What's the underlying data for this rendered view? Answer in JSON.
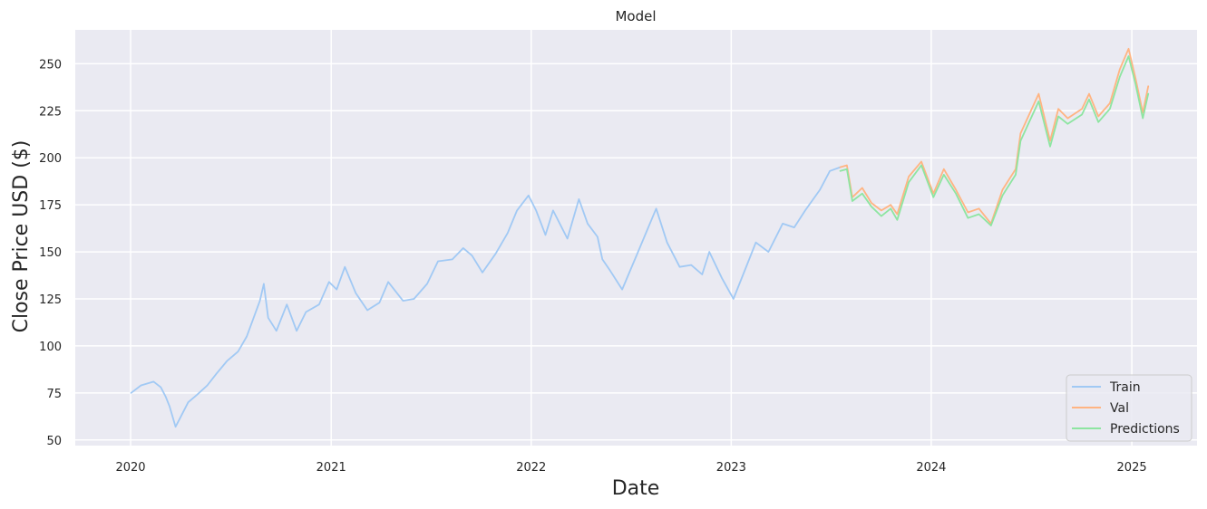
{
  "colors": {
    "plot_background": "#eaeaf2",
    "grid": "#ffffff",
    "train": "#a1c9f4",
    "val": "#ffb482",
    "predictions": "#8de5a1",
    "text": "#262626"
  },
  "chart_data": {
    "type": "line",
    "title": "Model",
    "xlabel": "Date",
    "ylabel": "Close Price USD ($)",
    "x_tick_labels": [
      "2020",
      "2021",
      "2022",
      "2023",
      "2024",
      "2025"
    ],
    "y_tick_labels": [
      "50",
      "75",
      "100",
      "125",
      "150",
      "175",
      "200",
      "225",
      "250"
    ],
    "y_ticks": [
      50,
      75,
      100,
      125,
      150,
      175,
      200,
      225,
      250
    ],
    "xlim": [
      "2019-09-22",
      "2025-04-30"
    ],
    "ylim": [
      47,
      268
    ],
    "grid": true,
    "legend_position": "bottom-right",
    "series": [
      {
        "name": "Train",
        "color": "#a1c9f4",
        "points": [
          [
            "2020-01-02",
            75
          ],
          [
            "2020-01-20",
            79
          ],
          [
            "2020-02-12",
            81
          ],
          [
            "2020-02-25",
            78
          ],
          [
            "2020-03-05",
            73
          ],
          [
            "2020-03-12",
            68
          ],
          [
            "2020-03-23",
            57
          ],
          [
            "2020-04-01",
            62
          ],
          [
            "2020-04-15",
            70
          ],
          [
            "2020-05-01",
            74
          ],
          [
            "2020-05-20",
            79
          ],
          [
            "2020-06-05",
            85
          ],
          [
            "2020-06-25",
            92
          ],
          [
            "2020-07-15",
            97
          ],
          [
            "2020-07-31",
            105
          ],
          [
            "2020-08-10",
            113
          ],
          [
            "2020-08-24",
            124
          ],
          [
            "2020-08-31",
            133
          ],
          [
            "2020-09-08",
            115
          ],
          [
            "2020-09-23",
            108
          ],
          [
            "2020-10-12",
            122
          ],
          [
            "2020-10-30",
            108
          ],
          [
            "2020-11-16",
            118
          ],
          [
            "2020-12-10",
            122
          ],
          [
            "2020-12-28",
            134
          ],
          [
            "2021-01-11",
            130
          ],
          [
            "2021-01-26",
            142
          ],
          [
            "2021-02-15",
            128
          ],
          [
            "2021-03-08",
            119
          ],
          [
            "2021-03-30",
            123
          ],
          [
            "2021-04-15",
            134
          ],
          [
            "2021-05-12",
            124
          ],
          [
            "2021-06-01",
            125
          ],
          [
            "2021-06-25",
            133
          ],
          [
            "2021-07-15",
            145
          ],
          [
            "2021-08-10",
            146
          ],
          [
            "2021-08-30",
            152
          ],
          [
            "2021-09-15",
            148
          ],
          [
            "2021-10-04",
            139
          ],
          [
            "2021-10-28",
            149
          ],
          [
            "2021-11-19",
            160
          ],
          [
            "2021-12-06",
            172
          ],
          [
            "2021-12-27",
            180
          ],
          [
            "2022-01-10",
            172
          ],
          [
            "2022-01-27",
            159
          ],
          [
            "2022-02-10",
            172
          ],
          [
            "2022-03-08",
            157
          ],
          [
            "2022-03-29",
            178
          ],
          [
            "2022-04-14",
            165
          ],
          [
            "2022-05-02",
            158
          ],
          [
            "2022-05-11",
            146
          ],
          [
            "2022-05-25",
            140
          ],
          [
            "2022-06-16",
            130
          ],
          [
            "2022-07-15",
            150
          ],
          [
            "2022-08-17",
            173
          ],
          [
            "2022-09-06",
            155
          ],
          [
            "2022-09-29",
            142
          ],
          [
            "2022-10-20",
            143
          ],
          [
            "2022-11-09",
            138
          ],
          [
            "2022-11-22",
            150
          ],
          [
            "2022-12-15",
            136
          ],
          [
            "2023-01-05",
            125
          ],
          [
            "2023-01-31",
            144
          ],
          [
            "2023-02-15",
            155
          ],
          [
            "2023-03-10",
            150
          ],
          [
            "2023-04-05",
            165
          ],
          [
            "2023-04-26",
            163
          ],
          [
            "2023-05-16",
            172
          ],
          [
            "2023-06-12",
            183
          ],
          [
            "2023-06-30",
            193
          ],
          [
            "2023-07-19",
            195
          ]
        ]
      },
      {
        "name": "Val",
        "color": "#ffb482",
        "points": [
          [
            "2023-07-19",
            195
          ],
          [
            "2023-07-31",
            196
          ],
          [
            "2023-08-10",
            179
          ],
          [
            "2023-08-28",
            184
          ],
          [
            "2023-09-14",
            176
          ],
          [
            "2023-10-02",
            172
          ],
          [
            "2023-10-19",
            175
          ],
          [
            "2023-10-31",
            170
          ],
          [
            "2023-11-21",
            190
          ],
          [
            "2023-12-14",
            198
          ],
          [
            "2024-01-05",
            181
          ],
          [
            "2024-01-24",
            194
          ],
          [
            "2024-02-15",
            183
          ],
          [
            "2024-03-08",
            171
          ],
          [
            "2024-03-28",
            173
          ],
          [
            "2024-04-19",
            165
          ],
          [
            "2024-05-10",
            183
          ],
          [
            "2024-06-03",
            194
          ],
          [
            "2024-06-12",
            213
          ],
          [
            "2024-07-15",
            234
          ],
          [
            "2024-08-05",
            209
          ],
          [
            "2024-08-20",
            226
          ],
          [
            "2024-09-06",
            221
          ],
          [
            "2024-10-02",
            226
          ],
          [
            "2024-10-15",
            234
          ],
          [
            "2024-11-01",
            222
          ],
          [
            "2024-11-22",
            229
          ],
          [
            "2024-12-10",
            247
          ],
          [
            "2024-12-26",
            258
          ],
          [
            "2025-01-08",
            242
          ],
          [
            "2025-01-21",
            224
          ],
          [
            "2025-01-31",
            238
          ]
        ]
      },
      {
        "name": "Predictions",
        "color": "#8de5a1",
        "points": [
          [
            "2023-07-19",
            193
          ],
          [
            "2023-07-31",
            194
          ],
          [
            "2023-08-10",
            177
          ],
          [
            "2023-08-28",
            181
          ],
          [
            "2023-09-14",
            174
          ],
          [
            "2023-10-02",
            169
          ],
          [
            "2023-10-19",
            173
          ],
          [
            "2023-10-31",
            167
          ],
          [
            "2023-11-21",
            187
          ],
          [
            "2023-12-14",
            196
          ],
          [
            "2024-01-05",
            179
          ],
          [
            "2024-01-24",
            191
          ],
          [
            "2024-02-15",
            181
          ],
          [
            "2024-03-08",
            168
          ],
          [
            "2024-03-28",
            170
          ],
          [
            "2024-04-19",
            164
          ],
          [
            "2024-05-10",
            180
          ],
          [
            "2024-06-03",
            191
          ],
          [
            "2024-06-12",
            209
          ],
          [
            "2024-07-15",
            230
          ],
          [
            "2024-08-05",
            206
          ],
          [
            "2024-08-20",
            222
          ],
          [
            "2024-09-06",
            218
          ],
          [
            "2024-10-02",
            223
          ],
          [
            "2024-10-15",
            231
          ],
          [
            "2024-11-01",
            219
          ],
          [
            "2024-11-22",
            226
          ],
          [
            "2024-12-10",
            243
          ],
          [
            "2024-12-26",
            254
          ],
          [
            "2025-01-08",
            239
          ],
          [
            "2025-01-21",
            221
          ],
          [
            "2025-01-31",
            234
          ]
        ]
      }
    ]
  }
}
